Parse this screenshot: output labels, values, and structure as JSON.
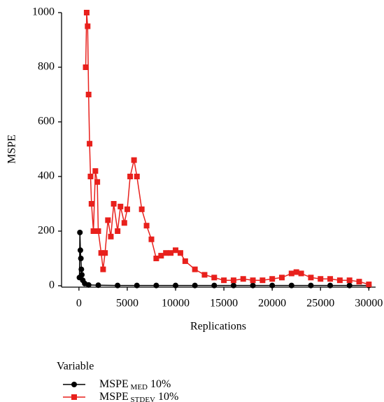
{
  "chart_data": {
    "type": "line",
    "x_label": "Replications",
    "y_label": "MSPE",
    "legend_title": "Variable",
    "xlim": [
      -1800,
      30700
    ],
    "ylim": [
      0,
      1000
    ],
    "xticks": [
      0,
      5000,
      10000,
      15000,
      20000,
      25000,
      30000
    ],
    "yticks": [
      0,
      200,
      400,
      600,
      800,
      1000
    ],
    "grid": false,
    "series": [
      {
        "name": "MSPE MED 10%",
        "color": "#000000",
        "marker": "circle",
        "x": [
          50,
          100,
          150,
          200,
          250,
          300,
          400,
          600,
          1000,
          2000,
          4000,
          6000,
          8000,
          10000,
          12000,
          14000,
          16000,
          18000,
          20000,
          22000,
          24000,
          26000,
          28000,
          30000
        ],
        "values": [
          30,
          195,
          130,
          100,
          60,
          40,
          20,
          8,
          3,
          2,
          1,
          1,
          1,
          1,
          1,
          1,
          1,
          1,
          1,
          1,
          1,
          1,
          1,
          1
        ]
      },
      {
        "name": "MSPE STDEV 10%",
        "color": "#e8201c",
        "marker": "square",
        "x": [
          700,
          800,
          900,
          1000,
          1100,
          1200,
          1300,
          1500,
          1700,
          1900,
          2000,
          2300,
          2500,
          2700,
          3000,
          3300,
          3600,
          4000,
          4300,
          4700,
          5000,
          5300,
          5700,
          6000,
          6500,
          7000,
          7500,
          8000,
          8500,
          9000,
          9500,
          10000,
          10500,
          11000,
          12000,
          13000,
          14000,
          15000,
          16000,
          17000,
          18000,
          19000,
          20000,
          21000,
          22000,
          22500,
          23000,
          24000,
          25000,
          26000,
          27000,
          28000,
          29000,
          30000
        ],
        "values": [
          800,
          1000,
          950,
          700,
          520,
          400,
          300,
          200,
          420,
          380,
          200,
          120,
          60,
          120,
          240,
          180,
          300,
          200,
          290,
          230,
          280,
          400,
          460,
          400,
          280,
          220,
          170,
          100,
          110,
          120,
          120,
          130,
          120,
          90,
          60,
          40,
          30,
          20,
          20,
          25,
          20,
          20,
          25,
          30,
          45,
          50,
          45,
          30,
          25,
          25,
          20,
          20,
          15,
          5
        ]
      }
    ]
  }
}
